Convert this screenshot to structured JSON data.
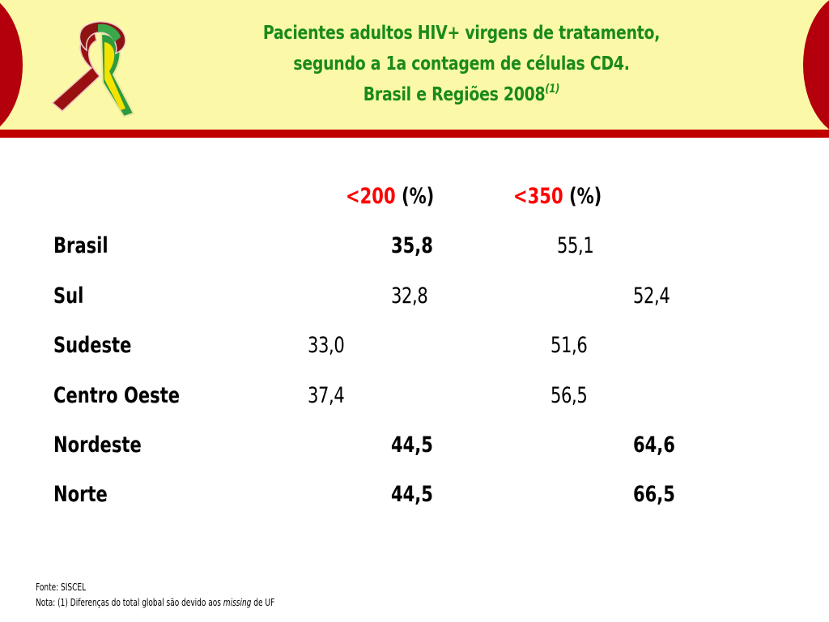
{
  "header": {
    "title_line1": "Pacientes adultos HIV+ virgens de tratamento,",
    "title_line2": "segundo a 1a contagem de células CD4.",
    "title_line3": "Brasil e Regiões 2008",
    "title_superscript": "(1)",
    "title_color": "#1a8a1a",
    "band_color": "#fbf8a8",
    "accent_color": "#c00000",
    "logo": "aids-ribbon-icon"
  },
  "table": {
    "columns": [
      {
        "threshold": "<200",
        "unit": "(%)"
      },
      {
        "threshold": "<350",
        "unit": "(%)"
      }
    ],
    "rows": [
      {
        "region": "Brasil",
        "lt200": "35,8",
        "lt350": "55,1"
      },
      {
        "region": "Sul",
        "lt200": "32,8",
        "lt350": "52,4"
      },
      {
        "region": "Sudeste",
        "lt200": "33,0",
        "lt350": "51,6"
      },
      {
        "region": "Centro Oeste",
        "lt200": "37,4",
        "lt350": "56,5"
      },
      {
        "region": "Nordeste",
        "lt200": "44,5",
        "lt350": "64,6"
      },
      {
        "region": "Norte",
        "lt200": "44,5",
        "lt350": "66,5"
      }
    ]
  },
  "footer": {
    "source": "Fonte: SISCEL",
    "note_prefix": "Nota: (1) Diferenças do total global são devido aos ",
    "note_italic": "missing",
    "note_suffix": " de UF"
  }
}
